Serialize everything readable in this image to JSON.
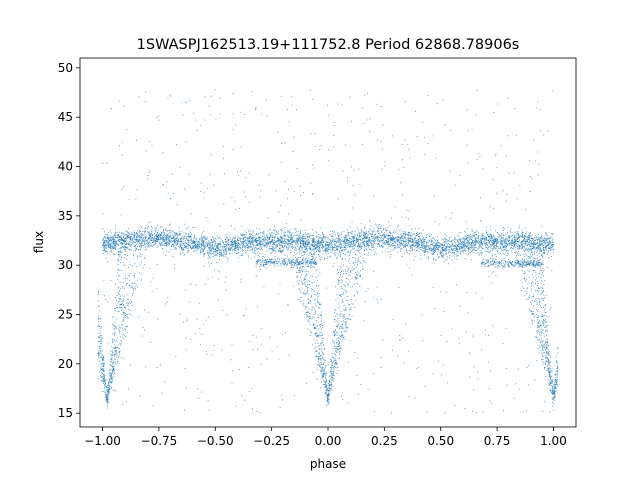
{
  "chart_data": {
    "type": "scatter",
    "title": "1SWASPJ162513.19+111752.8 Period 62868.78906s",
    "xlabel": "phase",
    "ylabel": "flux",
    "xlim": [
      -1.1,
      1.1
    ],
    "ylim": [
      13.6,
      51.0
    ],
    "x_ticks": [
      -1.0,
      -0.75,
      -0.5,
      -0.25,
      0.0,
      0.25,
      0.5,
      0.75,
      1.0
    ],
    "x_tick_labels": [
      "−1.00",
      "−0.75",
      "−0.50",
      "−0.25",
      "0.00",
      "0.25",
      "0.50",
      "0.75",
      "1.00"
    ],
    "y_ticks": [
      15,
      20,
      25,
      30,
      35,
      40,
      45,
      50
    ],
    "y_tick_labels": [
      "15",
      "20",
      "25",
      "30",
      "35",
      "40",
      "45",
      "50"
    ],
    "grid": false,
    "marker_color": "#1f77b4",
    "series": [
      {
        "description_free": true,
        "baseline": [
          {
            "x": -1.0,
            "y": 32.2
          },
          {
            "x": -0.75,
            "y": 32.8
          },
          {
            "x": -0.6,
            "y": 32.3
          },
          {
            "x": -0.5,
            "y": 31.6
          },
          {
            "x": -0.35,
            "y": 32.3
          },
          {
            "x": -0.15,
            "y": 32.4
          },
          {
            "x": 0.0,
            "y": 32.0
          },
          {
            "x": 0.25,
            "y": 32.8
          },
          {
            "x": 0.4,
            "y": 32.3
          },
          {
            "x": 0.5,
            "y": 31.6
          },
          {
            "x": 0.65,
            "y": 32.3
          },
          {
            "x": 0.85,
            "y": 32.4
          },
          {
            "x": 1.0,
            "y": 32.0
          }
        ],
        "eclipse_minima": [
          {
            "x": -0.98,
            "y": 16.3
          },
          {
            "x": 0.0,
            "y": 16.4
          },
          {
            "x": 1.0,
            "y": 16.5
          }
        ],
        "secondary_level": [
          {
            "x": -0.32,
            "y": 30.3
          },
          {
            "x": -0.05,
            "y": 30.3
          },
          {
            "x": 0.68,
            "y": 30.2
          },
          {
            "x": 0.95,
            "y": 30.2
          }
        ]
      }
    ]
  }
}
